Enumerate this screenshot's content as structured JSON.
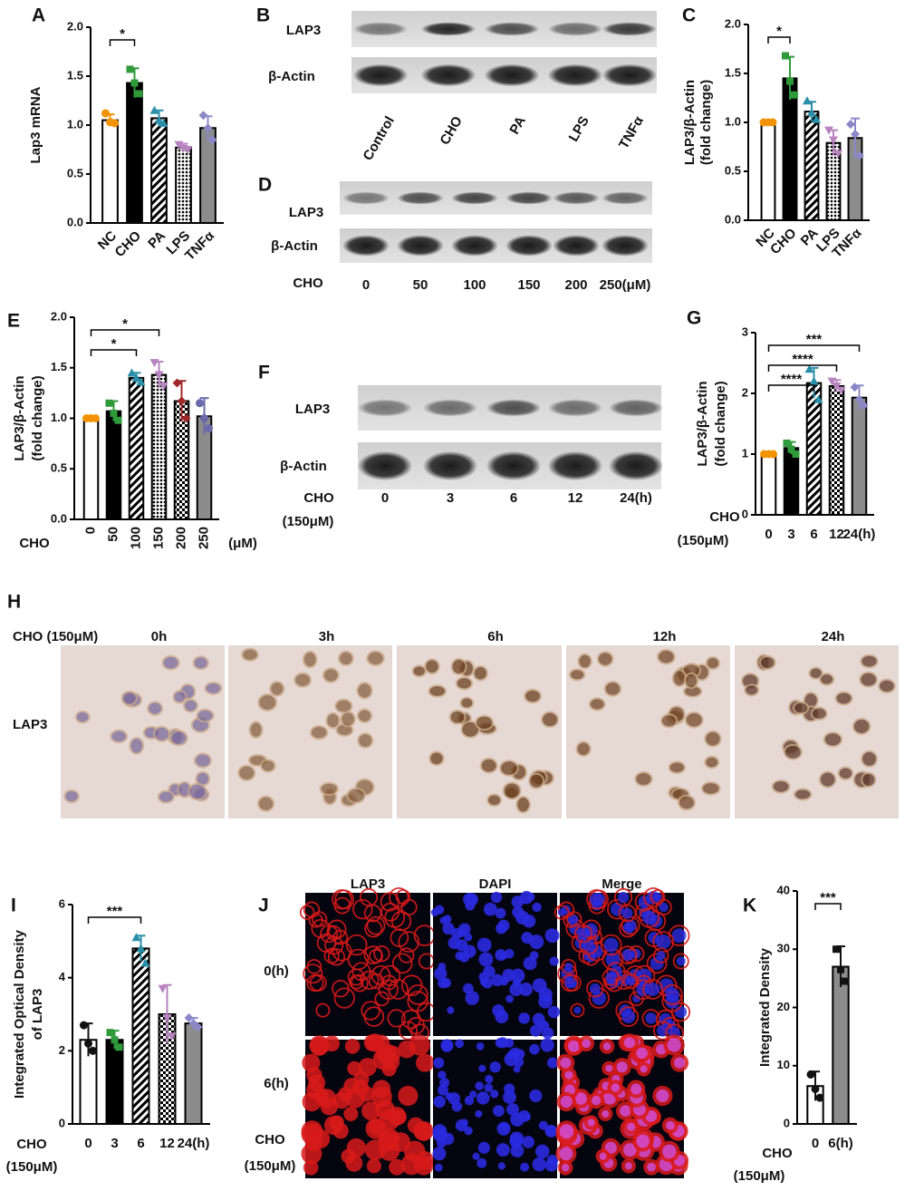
{
  "chart_data": [
    {
      "label": "A",
      "type": "bar",
      "ylabel": [
        "Lap3 mRNA"
      ],
      "categories": [
        "NC",
        "CHO",
        "PA",
        "LPS",
        "TNFα"
      ],
      "values": [
        1.05,
        1.43,
        1.07,
        0.77,
        0.97
      ],
      "errors": [
        0.06,
        0.15,
        0.08,
        0.04,
        0.12
      ],
      "points": [
        [
          1.12,
          1.03,
          1.02
        ],
        [
          1.57,
          1.43,
          1.32
        ],
        [
          1.15,
          1.05,
          1.02
        ],
        [
          0.8,
          0.76,
          0.75
        ],
        [
          1.1,
          0.97,
          0.85
        ]
      ],
      "bar_fills": [
        "#ffffff",
        "#000000",
        "hatch",
        "dots",
        "#8c8c8c"
      ],
      "point_colors": [
        "#f39200",
        "#2e9a3a",
        "#2a8fa8",
        "#b784c0",
        "#8c88c8"
      ],
      "ylim": [
        0,
        2
      ],
      "yticks": [
        {
          "value": 0,
          "label": "0.0"
        },
        {
          "value": 0.5,
          "label": "0.5"
        },
        {
          "value": 1,
          "label": "1.0"
        },
        {
          "value": 1.5,
          "label": "1.5"
        },
        {
          "value": 2,
          "label": "2.0"
        }
      ],
      "annotations": [
        {
          "text": "*",
          "between": [
            "NC",
            "CHO"
          ]
        }
      ]
    },
    {
      "label": "C",
      "type": "bar",
      "ylabel": [
        "LAP3/β-Actin",
        "(fold change)"
      ],
      "categories": [
        "NC",
        "CHO",
        "PA",
        "LPS",
        "TNFα"
      ],
      "values": [
        1.0,
        1.45,
        1.11,
        0.79,
        0.84
      ],
      "errors": [
        0.01,
        0.22,
        0.1,
        0.13,
        0.2
      ],
      "points": [
        [
          1,
          1,
          1
        ],
        [
          1.68,
          1.42,
          1.28
        ],
        [
          1.22,
          1.1,
          1.03
        ],
        [
          0.92,
          0.82,
          0.68
        ],
        [
          0.98,
          0.88,
          0.66
        ]
      ],
      "bar_fills": [
        "#ffffff",
        "#000000",
        "hatch",
        "dots",
        "#8c8c8c"
      ],
      "point_colors": [
        "#f39200",
        "#2e9a3a",
        "#2a8fa8",
        "#b784c0",
        "#8c88c8"
      ],
      "ylim": [
        0,
        2
      ],
      "yticks": [
        {
          "value": 0,
          "label": "0.0"
        },
        {
          "value": 0.5,
          "label": "0.5"
        },
        {
          "value": 1,
          "label": "1.0"
        },
        {
          "value": 1.5,
          "label": "1.5"
        },
        {
          "value": 2,
          "label": "2.0"
        }
      ],
      "annotations": [
        {
          "text": "*",
          "between": [
            "NC",
            "CHO"
          ]
        }
      ]
    },
    {
      "label": "E",
      "type": "bar",
      "ylabel": [
        "LAP3/β-Actin",
        "(fold change)"
      ],
      "xlabel": [
        "CHO"
      ],
      "xunit": "(μM)",
      "categories": [
        "0",
        "50",
        "100",
        "150",
        "200",
        "250"
      ],
      "values": [
        1.0,
        1.07,
        1.4,
        1.43,
        1.17,
        1.02
      ],
      "errors": [
        0.01,
        0.1,
        0.05,
        0.13,
        0.2,
        0.18
      ],
      "points": [
        [
          1,
          1,
          1
        ],
        [
          1.15,
          1.05,
          0.98
        ],
        [
          1.45,
          1.4,
          1.36
        ],
        [
          1.55,
          1.43,
          1.32
        ],
        [
          1.35,
          1.17,
          1.0
        ],
        [
          1.15,
          1.0,
          0.9
        ]
      ],
      "bar_fills": [
        "#ffffff",
        "#000000",
        "hatch",
        "dots",
        "checker",
        "#8c8c8c"
      ],
      "point_colors": [
        "#f39200",
        "#2e9a3a",
        "#2a8fa8",
        "#b784c0",
        "#a0282a",
        "#6a6aaa"
      ],
      "ylim": [
        0,
        2
      ],
      "yticks": [
        {
          "value": 0,
          "label": "0.0"
        },
        {
          "value": 0.5,
          "label": "0.5"
        },
        {
          "value": 1,
          "label": "1.0"
        },
        {
          "value": 1.5,
          "label": "1.5"
        },
        {
          "value": 2,
          "label": "2.0"
        }
      ],
      "annotations": [
        {
          "text": "*",
          "between": [
            "0",
            "100"
          ]
        },
        {
          "text": "*",
          "between": [
            "0",
            "150"
          ]
        }
      ]
    },
    {
      "label": "G",
      "type": "bar",
      "ylabel": [
        "LAP3/β-Actin",
        "(fold change)"
      ],
      "xlabel": [
        "CHO",
        "(150μM)"
      ],
      "categories": [
        "0",
        "3",
        "6",
        "12",
        "24(h)"
      ],
      "values": [
        1.0,
        1.1,
        2.17,
        2.12,
        1.93
      ],
      "errors": [
        0.01,
        0.1,
        0.25,
        0.1,
        0.2
      ],
      "points": [
        [
          1,
          1,
          1
        ],
        [
          1.18,
          1.08,
          1.0
        ],
        [
          2.4,
          2.2,
          1.9
        ],
        [
          2.2,
          2.12,
          2.05
        ],
        [
          2.1,
          1.9,
          1.8
        ]
      ],
      "bar_fills": [
        "#ffffff",
        "#000000",
        "hatch",
        "checker",
        "#8c8c8c"
      ],
      "point_colors": [
        "#f39200",
        "#2e9a3a",
        "#2a8fa8",
        "#b784c0",
        "#8c88c8"
      ],
      "ylim": [
        0,
        3
      ],
      "yticks": [
        0,
        1,
        2,
        3
      ],
      "annotations": [
        {
          "text": "****",
          "between": [
            "0",
            "6"
          ]
        },
        {
          "text": "****",
          "between": [
            "0",
            "12"
          ]
        },
        {
          "text": "***",
          "between": [
            "0",
            "24(h)"
          ]
        }
      ]
    },
    {
      "label": "I",
      "type": "bar",
      "ylabel": [
        "Integrated Optical Density",
        "of LAP3"
      ],
      "xlabel": [
        "CHO",
        "(150μM)"
      ],
      "categories": [
        "0",
        "3",
        "6",
        "12",
        "24(h)"
      ],
      "values": [
        2.3,
        2.3,
        4.8,
        3.0,
        2.75
      ],
      "errors": [
        0.45,
        0.25,
        0.35,
        0.8,
        0.15
      ],
      "points": [
        [
          2.7,
          2.2,
          2.0
        ],
        [
          2.5,
          2.3,
          2.1
        ],
        [
          5.1,
          4.8,
          4.4
        ],
        [
          3.7,
          2.9,
          2.4
        ],
        [
          2.9,
          2.75,
          2.65
        ]
      ],
      "bar_fills": [
        "#ffffff",
        "#000000",
        "hatch",
        "checker",
        "#8c8c8c"
      ],
      "point_colors": [
        "#111111",
        "#2e9a3a",
        "#2a8fa8",
        "#b784c0",
        "#8c88c8"
      ],
      "ylim": [
        0,
        6
      ],
      "yticks": [
        0,
        2,
        4,
        6
      ],
      "annotations": [
        {
          "text": "***",
          "between": [
            "0",
            "6"
          ]
        }
      ]
    },
    {
      "label": "K",
      "type": "bar",
      "ylabel": [
        "Integrated Density"
      ],
      "xlabel": [
        "CHO",
        "(150μM)"
      ],
      "categories": [
        "0",
        "6(h)"
      ],
      "values": [
        6.5,
        27
      ],
      "errors": [
        2.5,
        3.5
      ],
      "points": [
        [
          8.5,
          6.0,
          4.5
        ],
        [
          30,
          26.5,
          24.5
        ]
      ],
      "bar_fills": [
        "#ffffff",
        "#8c8c8c"
      ],
      "point_colors": [
        "#111111",
        "#111111"
      ],
      "ylim": [
        0,
        40
      ],
      "yticks": [
        0,
        10,
        20,
        30,
        40
      ],
      "annotations": [
        {
          "text": "***",
          "between": [
            "0",
            "6(h)"
          ]
        }
      ]
    }
  ],
  "blots": [
    {
      "label": "B",
      "rows": [
        "LAP3",
        "β-Actin"
      ],
      "lanes": [
        "Control",
        "CHO",
        "PA",
        "LPS",
        "TNFα"
      ]
    },
    {
      "label": "D",
      "rows": [
        "LAP3",
        "β-Actin"
      ],
      "prefix": [
        "CHO"
      ],
      "lanes": [
        "0",
        "50",
        "100",
        "150",
        "200",
        "250(μM)"
      ]
    },
    {
      "label": "F",
      "rows": [
        "LAP3",
        "β-Actin"
      ],
      "prefix": [
        "CHO",
        "(150μM)"
      ],
      "lanes": [
        "0",
        "3",
        "6",
        "12",
        "24(h)"
      ]
    }
  ],
  "ihc": {
    "label": "H",
    "condition": "CHO (150μM)",
    "times": [
      "0h",
      "3h",
      "6h",
      "12h",
      "24h"
    ],
    "row": "LAP3"
  },
  "fluorescence": {
    "label": "J",
    "channels": [
      "LAP3",
      "DAPI",
      "Merge"
    ],
    "rows": [
      "0(h)",
      "6(h)"
    ],
    "condition": [
      "CHO",
      "(150μM)"
    ]
  }
}
